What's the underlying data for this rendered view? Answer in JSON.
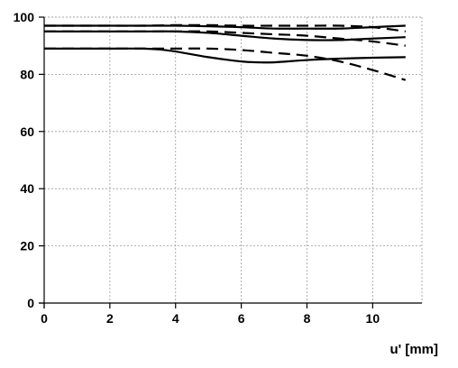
{
  "chart_data": {
    "type": "line",
    "title": "",
    "xlabel": "u' [mm]",
    "ylabel": "",
    "xlim": [
      0,
      11.5
    ],
    "ylim": [
      0,
      100
    ],
    "xticks": [
      0,
      2,
      4,
      6,
      8,
      10
    ],
    "yticks": [
      0,
      20,
      40,
      60,
      80,
      100
    ],
    "grid": true,
    "colors": {
      "line": "#000000",
      "grid": "#9a9a9a"
    },
    "series": [
      {
        "style": "solid",
        "x": [
          0,
          1,
          2,
          3,
          4,
          5,
          6,
          7,
          8,
          9,
          10,
          11
        ],
        "y": [
          97,
          97,
          97,
          97,
          97,
          96.8,
          96.5,
          96,
          96,
          96,
          96.5,
          97
        ]
      },
      {
        "style": "dashed",
        "x": [
          0,
          1,
          2,
          3,
          4,
          5,
          6,
          7,
          8,
          9,
          10,
          11
        ],
        "y": [
          97,
          97,
          97,
          97,
          97.2,
          97.2,
          97,
          97,
          97,
          97,
          96.5,
          95
        ]
      },
      {
        "style": "solid",
        "x": [
          0,
          1,
          2,
          3,
          4,
          5,
          6,
          7,
          8,
          9,
          10,
          11
        ],
        "y": [
          95,
          95,
          95,
          95,
          95,
          94.5,
          93.5,
          92.5,
          92,
          92,
          92.5,
          93
        ]
      },
      {
        "style": "dashed",
        "x": [
          0,
          1,
          2,
          3,
          4,
          5,
          6,
          7,
          8,
          9,
          10,
          11
        ],
        "y": [
          95,
          95,
          95,
          95,
          95,
          95,
          94.5,
          94,
          93.5,
          92.5,
          91.5,
          90
        ]
      },
      {
        "style": "solid",
        "x": [
          0,
          1,
          2,
          3,
          3.5,
          4,
          5,
          6,
          6.5,
          7,
          8,
          9,
          10,
          11
        ],
        "y": [
          89,
          89,
          89,
          89,
          88.7,
          88,
          86,
          84.5,
          84.2,
          84.2,
          85,
          85.5,
          85.8,
          86
        ]
      },
      {
        "style": "dashed",
        "x": [
          0,
          1,
          2,
          3,
          4,
          5,
          6,
          7,
          8,
          9,
          10,
          11
        ],
        "y": [
          89,
          89,
          89,
          89,
          89,
          89,
          88.5,
          87.5,
          86.5,
          84.5,
          81.5,
          78
        ]
      }
    ]
  }
}
